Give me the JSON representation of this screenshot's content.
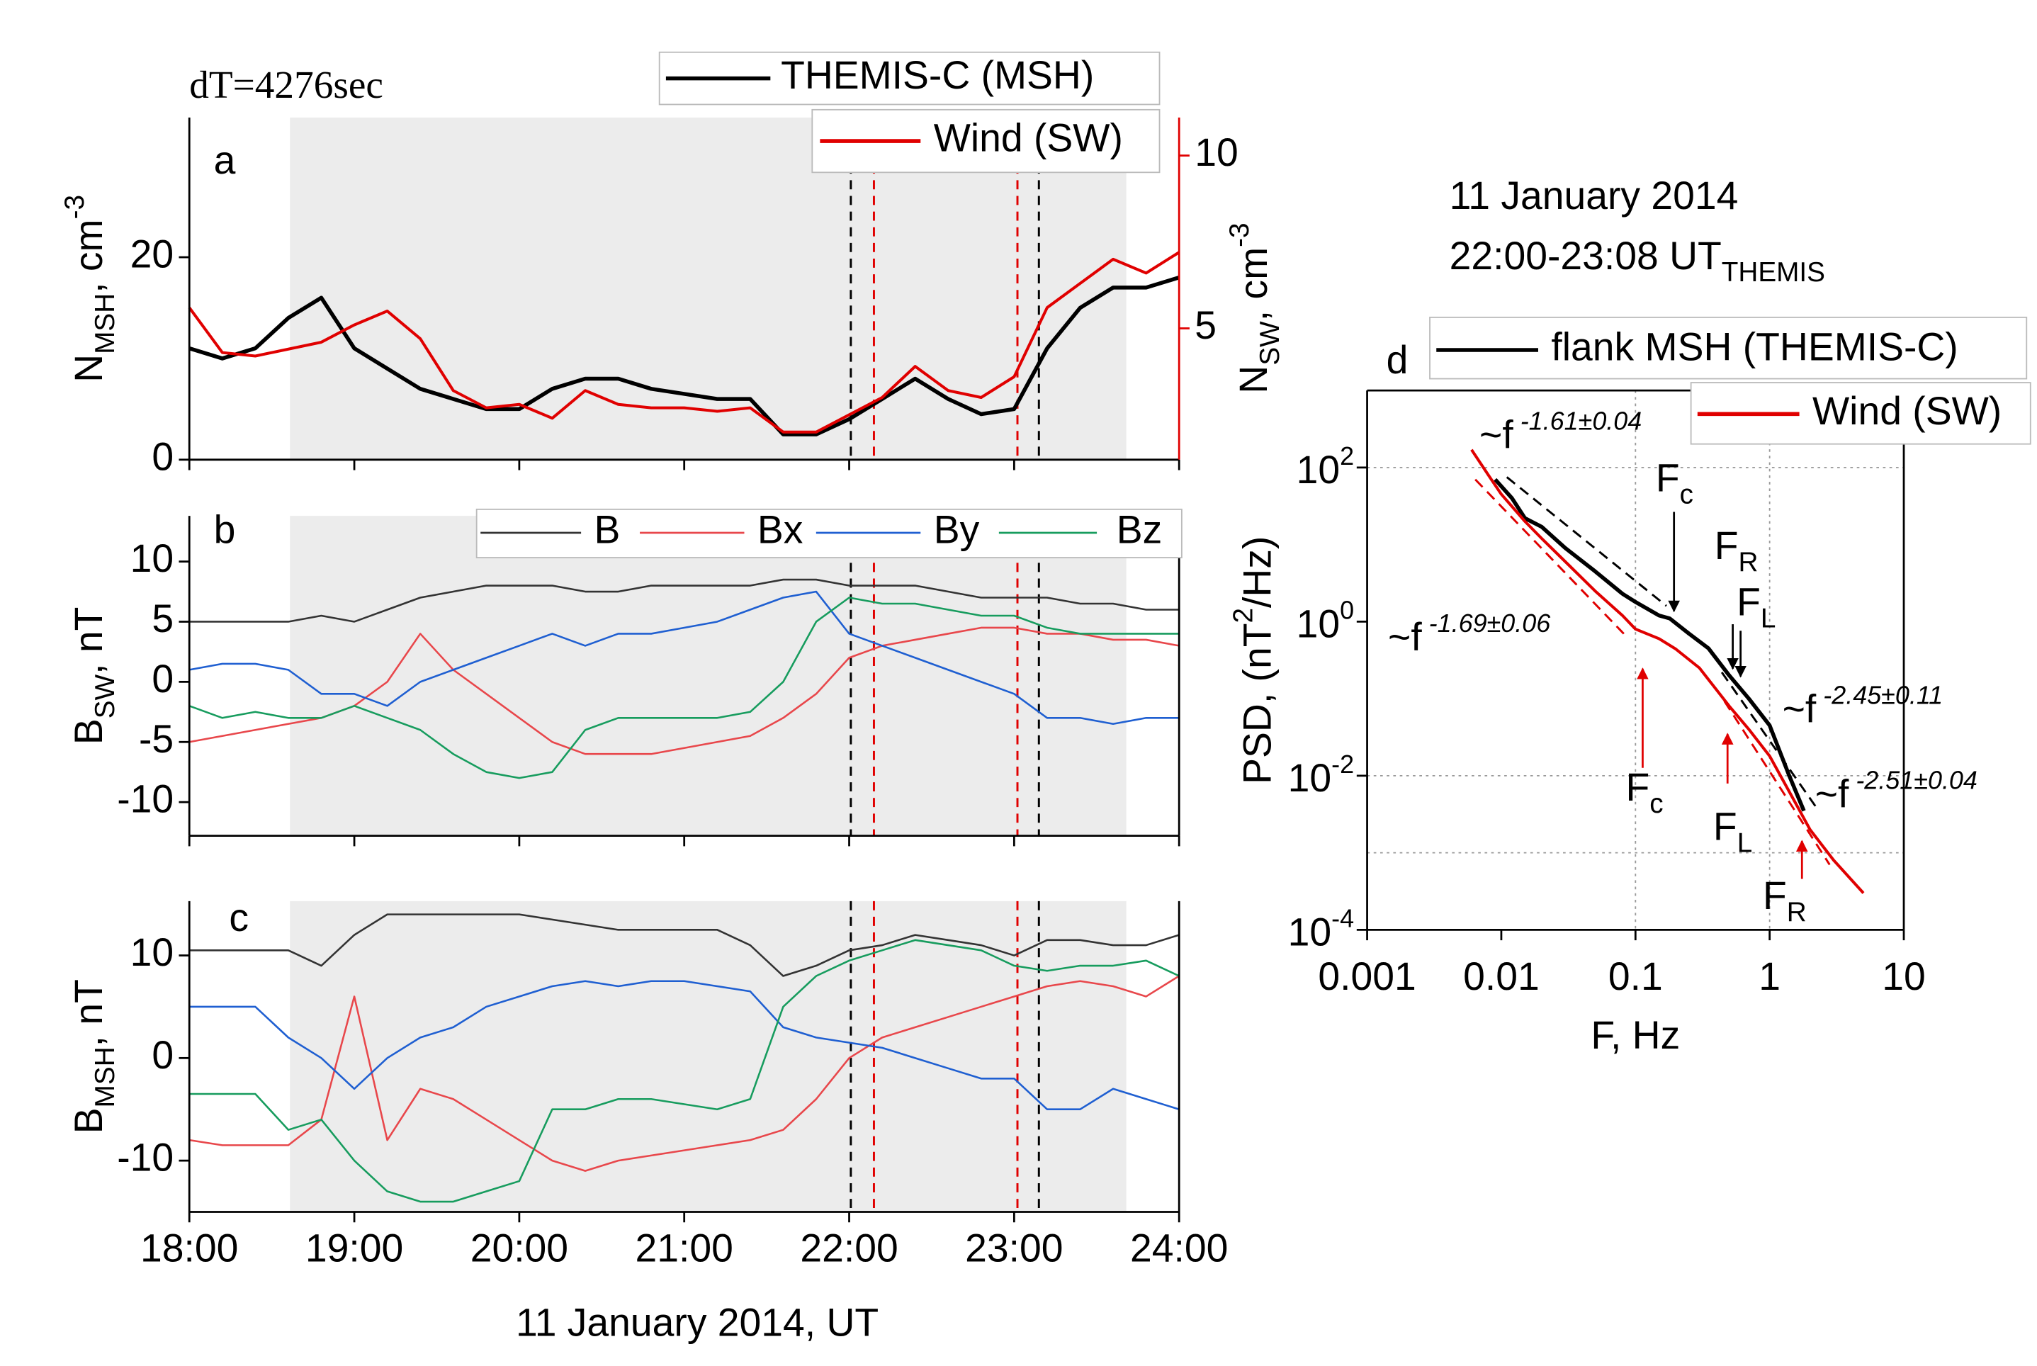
{
  "chart_data": [
    {
      "type": "line",
      "label": "a",
      "title": "dT=4276sec",
      "xlim": [
        18,
        24
      ],
      "ylim": [
        0,
        33.8
      ],
      "yticks": [
        0,
        20
      ],
      "y2lim": [
        1.2,
        11.1
      ],
      "y2ticks": [
        5,
        10
      ],
      "y2color": "#e00000",
      "ylabel": [
        {
          "t": "N"
        },
        {
          "sub": "MSH"
        },
        {
          "t": ", cm"
        },
        {
          "sup": "-3"
        }
      ],
      "y2label": [
        {
          "t": "N"
        },
        {
          "sub": "SW"
        },
        {
          "t": ", cm"
        },
        {
          "sup": "-3"
        }
      ],
      "shade": [
        18.61,
        23.68
      ],
      "vlines": [
        {
          "x": 22.01,
          "color": "#000000"
        },
        {
          "x": 22.15,
          "color": "#e00000"
        },
        {
          "x": 23.02,
          "color": "#e00000"
        },
        {
          "x": 23.15,
          "color": "#000000"
        }
      ],
      "x": [
        18.0,
        18.2,
        18.4,
        18.6,
        18.8,
        19.0,
        19.2,
        19.4,
        19.6,
        19.8,
        20.0,
        20.2,
        20.4,
        20.6,
        20.8,
        21.0,
        21.2,
        21.4,
        21.6,
        21.8,
        22.0,
        22.2,
        22.4,
        22.6,
        22.8,
        23.0,
        23.2,
        23.4,
        23.6,
        23.8,
        24.0
      ],
      "series": [
        {
          "name": "THEMIS-C (MSH)",
          "color": "#000000",
          "values": [
            11,
            10,
            11,
            14,
            16,
            11,
            9,
            7,
            6,
            5,
            5,
            7,
            8,
            8,
            7,
            6.5,
            6,
            6,
            2.5,
            2.5,
            4,
            6,
            8,
            6,
            4.5,
            5,
            11,
            15,
            17,
            17,
            18
          ]
        },
        {
          "name": "Wind (SW)",
          "color": "#e00000",
          "axis": "y2",
          "values": [
            5.6,
            4.3,
            4.2,
            4.4,
            4.6,
            5.1,
            5.5,
            4.7,
            3.2,
            2.7,
            2.8,
            2.4,
            3.2,
            2.8,
            2.7,
            2.7,
            2.6,
            2.7,
            2.0,
            2.0,
            2.5,
            3.0,
            3.9,
            3.2,
            3.0,
            3.6,
            5.6,
            6.3,
            7.0,
            6.6,
            7.2
          ]
        }
      ]
    },
    {
      "type": "line",
      "label": "b",
      "xlim": [
        18,
        24
      ],
      "ylim": [
        -12.8,
        13.8
      ],
      "yticks": [
        10,
        5,
        0,
        -5,
        -10
      ],
      "ylabel": [
        {
          "t": "B"
        },
        {
          "sub": "SW"
        },
        {
          "t": ", nT"
        }
      ],
      "shade": [
        18.61,
        23.68
      ],
      "vlines": [
        {
          "x": 22.01,
          "color": "#000000"
        },
        {
          "x": 22.15,
          "color": "#e00000"
        },
        {
          "x": 23.02,
          "color": "#e00000"
        },
        {
          "x": 23.15,
          "color": "#000000"
        }
      ],
      "x": [
        18.0,
        18.2,
        18.4,
        18.6,
        18.8,
        19.0,
        19.2,
        19.4,
        19.6,
        19.8,
        20.0,
        20.2,
        20.4,
        20.6,
        20.8,
        21.0,
        21.2,
        21.4,
        21.6,
        21.8,
        22.0,
        22.2,
        22.4,
        22.6,
        22.8,
        23.0,
        23.2,
        23.4,
        23.6,
        23.8,
        24.0
      ],
      "series": [
        {
          "name": "B",
          "color": "#333333",
          "values": [
            5,
            5,
            5,
            5,
            5.5,
            5,
            6,
            7,
            7.5,
            8,
            8,
            8,
            7.5,
            7.5,
            8,
            8,
            8,
            8,
            8.5,
            8.5,
            8,
            8,
            8,
            7.5,
            7,
            7,
            7,
            6.5,
            6.5,
            6,
            6
          ]
        },
        {
          "name": "Bx",
          "color": "#e8474b",
          "values": [
            -5,
            -4.5,
            -4,
            -3.5,
            -3,
            -2,
            0,
            4,
            1,
            -1,
            -3,
            -5,
            -6,
            -6,
            -6,
            -5.5,
            -5,
            -4.5,
            -3,
            -1,
            2,
            3,
            3.5,
            4,
            4.5,
            4.5,
            4,
            4,
            3.5,
            3.5,
            3
          ]
        },
        {
          "name": "By",
          "color": "#1f5fd1",
          "values": [
            1,
            1.5,
            1.5,
            1,
            -1,
            -1,
            -2,
            0,
            1,
            2,
            3,
            4,
            3,
            4,
            4,
            4.5,
            5,
            6,
            7,
            7.5,
            4,
            3,
            2,
            1,
            0,
            -1,
            -3,
            -3,
            -3.5,
            -3,
            -3
          ]
        },
        {
          "name": "Bz",
          "color": "#179c5e",
          "values": [
            -2,
            -3,
            -2.5,
            -3,
            -3,
            -2,
            -3,
            -4,
            -6,
            -7.5,
            -8,
            -7.5,
            -4,
            -3,
            -3,
            -3,
            -3,
            -2.5,
            0,
            5,
            7,
            6.5,
            6.5,
            6,
            5.5,
            5.5,
            4.5,
            4,
            4,
            4,
            4
          ]
        }
      ]
    },
    {
      "type": "line",
      "label": "c",
      "xlim": [
        18,
        24
      ],
      "ylim": [
        -15,
        15.3
      ],
      "yticks": [
        10,
        0,
        -10
      ],
      "xticks": [
        {
          "value": 18,
          "label": "18:00"
        },
        {
          "value": 19,
          "label": "19:00"
        },
        {
          "value": 20,
          "label": "20:00"
        },
        {
          "value": 21,
          "label": "21:00"
        },
        {
          "value": 22,
          "label": "22:00"
        },
        {
          "value": 23,
          "label": "23:00"
        },
        {
          "value": 24,
          "label": "24:00"
        }
      ],
      "xlabel": "11 January 2014, UT",
      "ylabel": [
        {
          "t": "B"
        },
        {
          "sub": "MSH"
        },
        {
          "t": ", nT"
        }
      ],
      "shade": [
        18.61,
        23.68
      ],
      "vlines": [
        {
          "x": 22.01,
          "color": "#000000"
        },
        {
          "x": 22.15,
          "color": "#e00000"
        },
        {
          "x": 23.02,
          "color": "#e00000"
        },
        {
          "x": 23.15,
          "color": "#000000"
        }
      ],
      "x": [
        18.0,
        18.2,
        18.4,
        18.6,
        18.8,
        19.0,
        19.2,
        19.4,
        19.6,
        19.8,
        20.0,
        20.2,
        20.4,
        20.6,
        20.8,
        21.0,
        21.2,
        21.4,
        21.6,
        21.8,
        22.0,
        22.2,
        22.4,
        22.6,
        22.8,
        23.0,
        23.2,
        23.4,
        23.6,
        23.8,
        24.0
      ],
      "series": [
        {
          "name": "B",
          "color": "#333333",
          "values": [
            10.5,
            10.5,
            10.5,
            10.5,
            9,
            12,
            14,
            14,
            14,
            14,
            14,
            13.5,
            13,
            12.5,
            12.5,
            12.5,
            12.5,
            11,
            8,
            9,
            10.5,
            11,
            12,
            11.5,
            11,
            10,
            11.5,
            11.5,
            11,
            11,
            12
          ]
        },
        {
          "name": "Bx",
          "color": "#e8474b",
          "values": [
            -8,
            -8.5,
            -8.5,
            -8.5,
            -6,
            6,
            -8,
            -3,
            -4,
            -6,
            -8,
            -10,
            -11,
            -10,
            -9.5,
            -9,
            -8.5,
            -8,
            -7,
            -4,
            0,
            2,
            3,
            4,
            5,
            6,
            7,
            7.5,
            7,
            6,
            8
          ]
        },
        {
          "name": "By",
          "color": "#1f5fd1",
          "values": [
            5,
            5,
            5,
            2,
            0,
            -3,
            0,
            2,
            3,
            5,
            6,
            7,
            7.5,
            7,
            7.5,
            7.5,
            7,
            6.5,
            3,
            2,
            1.5,
            1,
            0,
            -1,
            -2,
            -2,
            -5,
            -5,
            -3,
            -4,
            -5
          ]
        },
        {
          "name": "Bz",
          "color": "#179c5e",
          "values": [
            -3.5,
            -3.5,
            -3.5,
            -7,
            -6,
            -10,
            -13,
            -14,
            -14,
            -13,
            -12,
            -5,
            -5,
            -4,
            -4,
            -4.5,
            -5,
            -4,
            5,
            8,
            9.5,
            10.5,
            11.5,
            11,
            10.5,
            9,
            8.5,
            9,
            9,
            9.5,
            8
          ]
        }
      ]
    },
    {
      "type": "line",
      "label": "d",
      "title": "11 January 2014",
      "subtitle": [
        {
          "t": "22:00-23:08 UT"
        },
        {
          "sub": "THEMIS"
        }
      ],
      "xlog": true,
      "ylog": true,
      "xlim": [
        0.001,
        10
      ],
      "ylim": [
        0.0001,
        1000
      ],
      "xticks": [
        0.001,
        0.01,
        0.1,
        1,
        10
      ],
      "yticks": [
        {
          "value": 100,
          "label": "10",
          "exp": "2"
        },
        {
          "value": 1,
          "label": "10",
          "exp": "0"
        },
        {
          "value": 0.01,
          "label": "10",
          "exp": "-2"
        },
        {
          "value": 0.0001,
          "label": "10",
          "exp": "-4"
        }
      ],
      "grid_x": [
        0.1,
        1
      ],
      "grid_y": [
        100,
        0.01,
        0.001
      ],
      "xlabel": "F, Hz",
      "ylabel": [
        {
          "t": "PSD, (nT"
        },
        {
          "sup": "2"
        },
        {
          "t": "/Hz)"
        }
      ],
      "series": [
        {
          "name": "flank MSH (THEMIS-C)",
          "color": "#000000",
          "x": [
            0.009,
            0.012,
            0.015,
            0.02,
            0.03,
            0.05,
            0.08,
            0.1,
            0.15,
            0.18,
            0.25,
            0.35,
            0.5,
            0.7,
            1,
            1.4,
            1.8
          ],
          "values": [
            70,
            40,
            22,
            17,
            9,
            4.5,
            2.3,
            1.8,
            1.2,
            1.1,
            0.7,
            0.45,
            0.2,
            0.1,
            0.045,
            0.01,
            0.0035
          ]
        },
        {
          "name": "Wind (SW)",
          "color": "#e00000",
          "x": [
            0.006,
            0.008,
            0.01,
            0.015,
            0.02,
            0.03,
            0.05,
            0.08,
            0.1,
            0.15,
            0.2,
            0.3,
            0.5,
            0.7,
            1,
            1.5,
            2,
            3,
            5
          ],
          "values": [
            170,
            80,
            45,
            20,
            12,
            6,
            2.5,
            1.2,
            0.8,
            0.6,
            0.44,
            0.25,
            0.08,
            0.04,
            0.018,
            0.005,
            0.002,
            0.0008,
            0.0003
          ]
        }
      ],
      "fits": [
        {
          "color": "#000000",
          "x": [
            0.011,
            0.17
          ],
          "values": [
            75,
            1.6
          ]
        },
        {
          "color": "#000000",
          "x": [
            0.44,
            2.2
          ],
          "values": [
            0.22,
            0.004
          ]
        },
        {
          "color": "#e00000",
          "x": [
            0.0064,
            0.085
          ],
          "values": [
            70,
            0.65
          ]
        },
        {
          "color": "#e00000",
          "x": [
            0.46,
            2.8
          ],
          "values": [
            0.093,
            0.0007
          ]
        }
      ],
      "annotations": [
        {
          "color": "#000000",
          "parts": [
            {
              "t": "~f"
            },
            {
              "sup": " -1.61±0.04"
            }
          ]
        },
        {
          "color": "#e00000",
          "parts": [
            {
              "t": "~f"
            },
            {
              "sup": " -1.69±0.06"
            }
          ]
        },
        {
          "color": "#000000",
          "parts": [
            {
              "t": "~f"
            },
            {
              "sup": " -2.45±0.11"
            }
          ]
        },
        {
          "color": "#e00000",
          "parts": [
            {
              "t": "~f"
            },
            {
              "sup": " -2.51±0.04"
            }
          ]
        },
        {
          "color": "#000000",
          "parts": [
            {
              "t": "F"
            },
            {
              "sub": "c"
            }
          ]
        },
        {
          "color": "#000000",
          "parts": [
            {
              "t": "F"
            },
            {
              "sub": "R"
            }
          ]
        },
        {
          "color": "#000000",
          "parts": [
            {
              "t": "F"
            },
            {
              "sub": "L"
            }
          ]
        },
        {
          "color": "#e00000",
          "parts": [
            {
              "t": "F"
            },
            {
              "sub": "c"
            }
          ]
        },
        {
          "color": "#e00000",
          "parts": [
            {
              "t": "F"
            },
            {
              "sub": "L"
            }
          ]
        },
        {
          "color": "#e00000",
          "parts": [
            {
              "t": "F"
            },
            {
              "sub": "R"
            }
          ]
        }
      ]
    }
  ]
}
